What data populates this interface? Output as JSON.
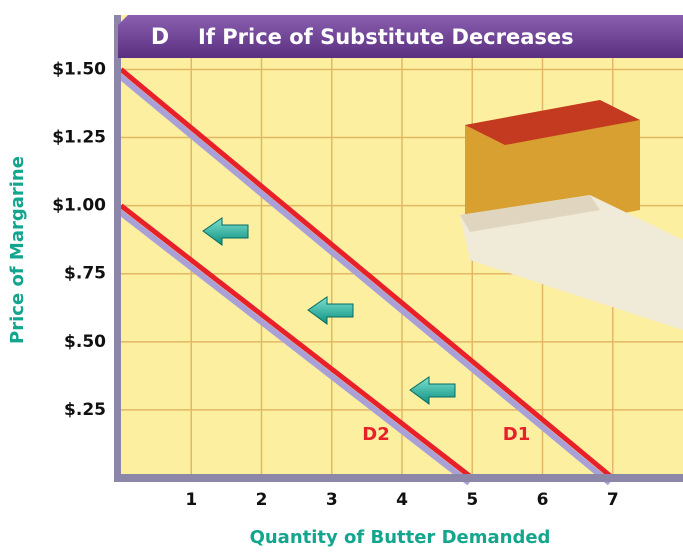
{
  "chart_data": {
    "type": "line",
    "panel": "D",
    "title": "If Price of Substitute Decreases",
    "x_label": "Quantity of Butter Demanded",
    "y_label": "Price of Margarine",
    "xlim": [
      0,
      8
    ],
    "ylim": [
      0,
      1.7
    ],
    "xticks": [
      1,
      2,
      3,
      4,
      5,
      6,
      7
    ],
    "yticks": [
      {
        "value": 0.25,
        "label": "$.25"
      },
      {
        "value": 0.5,
        "label": "$.50"
      },
      {
        "value": 0.75,
        "label": "$.75"
      },
      {
        "value": 1.0,
        "label": "$1.00"
      },
      {
        "value": 1.25,
        "label": "$1.25"
      },
      {
        "value": 1.5,
        "label": "$1.50"
      }
    ],
    "grid": true,
    "series": [
      {
        "name": "D1",
        "color": "#e8202a",
        "x": [
          0,
          7
        ],
        "values": [
          1.5,
          0
        ]
      },
      {
        "name": "D2",
        "color": "#e8202a",
        "x": [
          0,
          5
        ],
        "values": [
          1.0,
          0
        ]
      }
    ]
  }
}
